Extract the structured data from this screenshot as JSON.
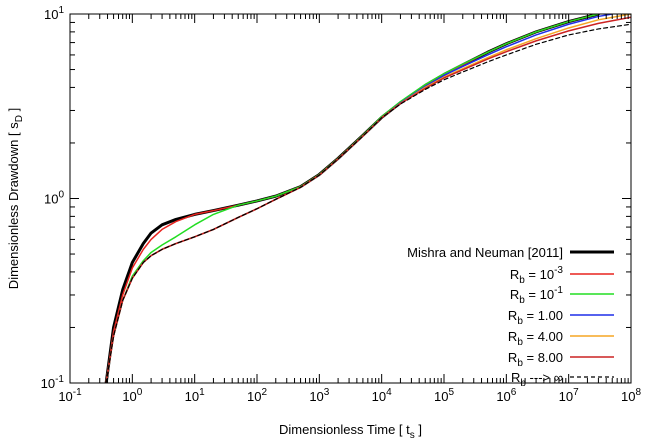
{
  "chart_data": {
    "type": "line",
    "title": "",
    "xlabel": {
      "main": "Dimensionless Time [ t",
      "sub": "s",
      "end": " ]"
    },
    "ylabel": {
      "main": "Dimensionless Drawdown [ s",
      "sub": "D",
      "end": " ]"
    },
    "x_scale": "log",
    "y_scale": "log",
    "xlim": [
      0.1,
      100000000
    ],
    "ylim": [
      0.1,
      10
    ],
    "grid": false,
    "legend_position": "bottom-right",
    "x_ticks": [
      {
        "value": 0.1,
        "base": "10",
        "exp": "-1"
      },
      {
        "value": 1,
        "base": "10",
        "exp": "0"
      },
      {
        "value": 10,
        "base": "10",
        "exp": "1"
      },
      {
        "value": 100,
        "base": "10",
        "exp": "2"
      },
      {
        "value": 1000,
        "base": "10",
        "exp": "3"
      },
      {
        "value": 10000,
        "base": "10",
        "exp": "4"
      },
      {
        "value": 100000,
        "base": "10",
        "exp": "5"
      },
      {
        "value": 1000000,
        "base": "10",
        "exp": "6"
      },
      {
        "value": 10000000,
        "base": "10",
        "exp": "7"
      },
      {
        "value": 100000000,
        "base": "10",
        "exp": "8"
      }
    ],
    "y_ticks": [
      {
        "value": 0.1,
        "base": "10",
        "exp": "-1"
      },
      {
        "value": 1,
        "base": "10",
        "exp": "0"
      },
      {
        "value": 10,
        "base": "10",
        "exp": "1"
      }
    ],
    "series": [
      {
        "label": [
          {
            "t": "Mishra and Neuman [2011]"
          }
        ],
        "color": "#000000",
        "width": 3,
        "dash": "",
        "points": [
          [
            0.38,
            0.1
          ],
          [
            0.5,
            0.2
          ],
          [
            0.7,
            0.32
          ],
          [
            1,
            0.45
          ],
          [
            1.5,
            0.57
          ],
          [
            2,
            0.65
          ],
          [
            3,
            0.72
          ],
          [
            5,
            0.77
          ],
          [
            10,
            0.82
          ],
          [
            20,
            0.86
          ],
          [
            50,
            0.92
          ],
          [
            100,
            0.97
          ],
          [
            200,
            1.03
          ],
          [
            500,
            1.16
          ],
          [
            1000,
            1.35
          ],
          [
            2000,
            1.65
          ],
          [
            5000,
            2.2
          ],
          [
            10000,
            2.75
          ],
          [
            20000,
            3.3
          ],
          [
            50000,
            4.1
          ],
          [
            100000,
            4.7
          ],
          [
            200000,
            5.3
          ],
          [
            500000,
            6.2
          ],
          [
            1000000,
            6.9
          ],
          [
            3000000,
            8.0
          ],
          [
            10000000,
            9.1
          ],
          [
            30000000,
            10.0
          ]
        ]
      },
      {
        "label": [
          {
            "t": "R"
          },
          {
            "t": "b",
            "sub": true
          },
          {
            "t": " = 10"
          },
          {
            "t": "-3",
            "sup": true
          }
        ],
        "color": "#e8231f",
        "width": 1.5,
        "dash": "",
        "points": [
          [
            0.38,
            0.1
          ],
          [
            0.5,
            0.19
          ],
          [
            0.7,
            0.3
          ],
          [
            1,
            0.42
          ],
          [
            1.5,
            0.53
          ],
          [
            2,
            0.6
          ],
          [
            3,
            0.68
          ],
          [
            5,
            0.75
          ],
          [
            10,
            0.82
          ],
          [
            20,
            0.86
          ],
          [
            50,
            0.92
          ],
          [
            100,
            0.97
          ],
          [
            200,
            1.03
          ],
          [
            500,
            1.16
          ],
          [
            1000,
            1.35
          ],
          [
            2000,
            1.65
          ],
          [
            5000,
            2.2
          ],
          [
            10000,
            2.75
          ],
          [
            20000,
            3.3
          ],
          [
            50000,
            4.1
          ],
          [
            100000,
            4.7
          ],
          [
            200000,
            5.3
          ],
          [
            500000,
            6.2
          ],
          [
            1000000,
            6.9
          ],
          [
            3000000,
            8.0
          ],
          [
            10000000,
            9.1
          ],
          [
            30000000,
            10.0
          ]
        ]
      },
      {
        "label": [
          {
            "t": "R"
          },
          {
            "t": "b",
            "sub": true
          },
          {
            "t": " = 10"
          },
          {
            "t": "-1",
            "sup": true
          }
        ],
        "color": "#22dd22",
        "width": 1.5,
        "dash": "",
        "points": [
          [
            0.38,
            0.1
          ],
          [
            0.5,
            0.18
          ],
          [
            0.7,
            0.28
          ],
          [
            1,
            0.38
          ],
          [
            1.5,
            0.46
          ],
          [
            2,
            0.51
          ],
          [
            3,
            0.56
          ],
          [
            5,
            0.62
          ],
          [
            10,
            0.72
          ],
          [
            20,
            0.82
          ],
          [
            50,
            0.92
          ],
          [
            100,
            0.97
          ],
          [
            200,
            1.03
          ],
          [
            500,
            1.16
          ],
          [
            1000,
            1.35
          ],
          [
            2000,
            1.65
          ],
          [
            5000,
            2.2
          ],
          [
            10000,
            2.78
          ],
          [
            20000,
            3.35
          ],
          [
            50000,
            4.15
          ],
          [
            100000,
            4.75
          ],
          [
            200000,
            5.35
          ],
          [
            500000,
            6.2
          ],
          [
            1000000,
            6.9
          ],
          [
            3000000,
            8.0
          ],
          [
            10000000,
            9.1
          ],
          [
            30000000,
            10.0
          ]
        ]
      },
      {
        "label": [
          {
            "t": "R"
          },
          {
            "t": "b",
            "sub": true
          },
          {
            "t": " = 1.00"
          }
        ],
        "color": "#1f2fe8",
        "width": 1.5,
        "dash": "",
        "points": [
          [
            0.38,
            0.1
          ],
          [
            0.5,
            0.18
          ],
          [
            0.7,
            0.28
          ],
          [
            1,
            0.37
          ],
          [
            1.5,
            0.45
          ],
          [
            2,
            0.49
          ],
          [
            3,
            0.53
          ],
          [
            5,
            0.57
          ],
          [
            10,
            0.62
          ],
          [
            20,
            0.68
          ],
          [
            50,
            0.79
          ],
          [
            100,
            0.88
          ],
          [
            200,
            0.99
          ],
          [
            500,
            1.15
          ],
          [
            1000,
            1.34
          ],
          [
            2000,
            1.64
          ],
          [
            5000,
            2.18
          ],
          [
            10000,
            2.74
          ],
          [
            20000,
            3.3
          ],
          [
            50000,
            4.05
          ],
          [
            100000,
            4.65
          ],
          [
            200000,
            5.2
          ],
          [
            500000,
            6.0
          ],
          [
            1000000,
            6.65
          ],
          [
            3000000,
            7.7
          ],
          [
            10000000,
            8.8
          ],
          [
            30000000,
            9.7
          ],
          [
            50000000,
            10.0
          ]
        ]
      },
      {
        "label": [
          {
            "t": "R"
          },
          {
            "t": "b",
            "sub": true
          },
          {
            "t": " = 4.00"
          }
        ],
        "color": "#f5a623",
        "width": 1.5,
        "dash": "",
        "points": [
          [
            0.38,
            0.1
          ],
          [
            0.5,
            0.18
          ],
          [
            0.7,
            0.28
          ],
          [
            1,
            0.37
          ],
          [
            1.5,
            0.45
          ],
          [
            2,
            0.49
          ],
          [
            3,
            0.53
          ],
          [
            5,
            0.57
          ],
          [
            10,
            0.62
          ],
          [
            20,
            0.68
          ],
          [
            50,
            0.79
          ],
          [
            100,
            0.88
          ],
          [
            200,
            0.99
          ],
          [
            500,
            1.15
          ],
          [
            1000,
            1.34
          ],
          [
            2000,
            1.64
          ],
          [
            5000,
            2.18
          ],
          [
            10000,
            2.74
          ],
          [
            20000,
            3.28
          ],
          [
            50000,
            4.0
          ],
          [
            100000,
            4.55
          ],
          [
            200000,
            5.05
          ],
          [
            500000,
            5.8
          ],
          [
            1000000,
            6.4
          ],
          [
            3000000,
            7.35
          ],
          [
            10000000,
            8.4
          ],
          [
            30000000,
            9.3
          ],
          [
            100000000,
            10.0
          ]
        ]
      },
      {
        "label": [
          {
            "t": "R"
          },
          {
            "t": "b",
            "sub": true
          },
          {
            "t": " = 8.00"
          }
        ],
        "color": "#cc2222",
        "width": 1.5,
        "dash": "",
        "points": [
          [
            0.38,
            0.1
          ],
          [
            0.5,
            0.18
          ],
          [
            0.7,
            0.28
          ],
          [
            1,
            0.37
          ],
          [
            1.5,
            0.45
          ],
          [
            2,
            0.49
          ],
          [
            3,
            0.53
          ],
          [
            5,
            0.57
          ],
          [
            10,
            0.62
          ],
          [
            20,
            0.68
          ],
          [
            50,
            0.79
          ],
          [
            100,
            0.88
          ],
          [
            200,
            0.99
          ],
          [
            500,
            1.15
          ],
          [
            1000,
            1.34
          ],
          [
            2000,
            1.64
          ],
          [
            5000,
            2.18
          ],
          [
            10000,
            2.74
          ],
          [
            20000,
            3.27
          ],
          [
            50000,
            3.95
          ],
          [
            100000,
            4.5
          ],
          [
            200000,
            4.98
          ],
          [
            500000,
            5.7
          ],
          [
            1000000,
            6.25
          ],
          [
            3000000,
            7.15
          ],
          [
            10000000,
            8.1
          ],
          [
            30000000,
            8.9
          ],
          [
            100000000,
            9.6
          ]
        ]
      },
      {
        "label": [
          {
            "t": "R"
          },
          {
            "t": "b",
            "sub": true
          },
          {
            "t": " ---> ∞"
          }
        ],
        "color": "#000000",
        "width": 1.2,
        "dash": "4,3",
        "points": [
          [
            0.38,
            0.1
          ],
          [
            0.5,
            0.18
          ],
          [
            0.7,
            0.28
          ],
          [
            1,
            0.37
          ],
          [
            1.5,
            0.45
          ],
          [
            2,
            0.49
          ],
          [
            3,
            0.53
          ],
          [
            5,
            0.57
          ],
          [
            10,
            0.62
          ],
          [
            20,
            0.68
          ],
          [
            50,
            0.79
          ],
          [
            100,
            0.88
          ],
          [
            200,
            0.99
          ],
          [
            500,
            1.15
          ],
          [
            1000,
            1.34
          ],
          [
            2000,
            1.64
          ],
          [
            5000,
            2.18
          ],
          [
            10000,
            2.74
          ],
          [
            20000,
            3.25
          ],
          [
            50000,
            3.9
          ],
          [
            100000,
            4.4
          ],
          [
            200000,
            4.85
          ],
          [
            500000,
            5.5
          ],
          [
            1000000,
            6.0
          ],
          [
            3000000,
            6.85
          ],
          [
            10000000,
            7.7
          ],
          [
            30000000,
            8.3
          ],
          [
            100000000,
            8.8
          ]
        ]
      }
    ]
  }
}
